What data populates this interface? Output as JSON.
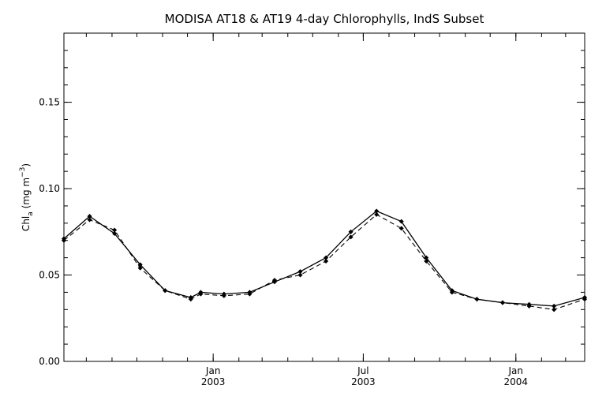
{
  "chart_data": {
    "type": "line",
    "title": "MODISA AT18 & AT19 4-day Chlorophylls, IndS Subset",
    "ylabel": {
      "main": "Chl",
      "sub": "a",
      "unit_open": " (mg m",
      "sup": "−3",
      "unit_close": ")"
    },
    "xlim": [
      "2002-07-05",
      "2004-03-24"
    ],
    "ylim": [
      0.0,
      0.19
    ],
    "yticks": [
      {
        "value": 0.0,
        "label": "0.00"
      },
      {
        "value": 0.05,
        "label": "0.05"
      },
      {
        "value": 0.1,
        "label": "0.10"
      },
      {
        "value": 0.15,
        "label": "0.15"
      }
    ],
    "xticks": [
      {
        "date": "2003-01-01",
        "line1": "Jan",
        "line2": "2003"
      },
      {
        "date": "2003-07-01",
        "line1": "Jul",
        "line2": "2003"
      },
      {
        "date": "2004-01-01",
        "line1": "Jan",
        "line2": "2004"
      }
    ],
    "x": [
      "2002-07-05",
      "2002-08-05",
      "2002-09-04",
      "2002-10-05",
      "2002-11-04",
      "2002-12-05",
      "2002-12-17",
      "2003-01-14",
      "2003-02-14",
      "2003-03-16",
      "2003-04-16",
      "2003-05-17",
      "2003-06-16",
      "2003-07-17",
      "2003-08-16",
      "2003-09-15",
      "2003-10-16",
      "2003-11-15",
      "2003-12-16",
      "2004-01-17",
      "2004-02-16",
      "2004-03-24"
    ],
    "series": [
      {
        "style": "solid",
        "values": [
          0.071,
          0.084,
          0.074,
          0.056,
          0.041,
          0.037,
          0.04,
          0.039,
          0.04,
          0.046,
          0.052,
          0.06,
          0.075,
          0.087,
          0.081,
          0.06,
          0.041,
          0.036,
          0.034,
          0.033,
          0.032,
          0.037
        ]
      },
      {
        "style": "dashed",
        "values": [
          0.07,
          0.082,
          0.076,
          0.054,
          0.041,
          0.036,
          0.039,
          0.038,
          0.039,
          0.047,
          0.05,
          0.058,
          0.072,
          0.085,
          0.077,
          0.058,
          0.04,
          0.036,
          0.034,
          0.032,
          0.03,
          0.036
        ]
      }
    ],
    "grid": false,
    "legend": "none"
  }
}
